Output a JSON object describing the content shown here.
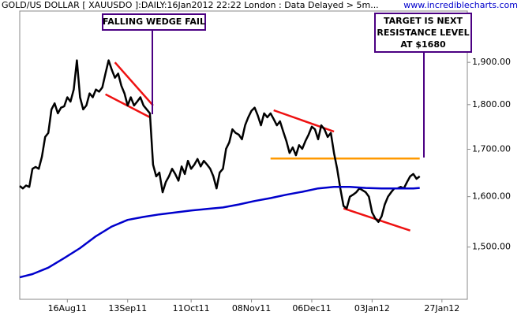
{
  "chart_data": {
    "type": "line",
    "title": "GOLD/US DOLLAR [ XAUUSDO ]:DAILY:16Jan2012 22:22 London : Data Delayed > 5m...",
    "source": "www.incrediblecharts.com",
    "log_scale": true,
    "xlim": [
      0,
      141
    ],
    "xticks": [
      {
        "value": 15,
        "label": "16Aug11"
      },
      {
        "value": 34,
        "label": "13Sep11"
      },
      {
        "value": 54,
        "label": "11Oct11"
      },
      {
        "value": 73,
        "label": "08Nov11"
      },
      {
        "value": 92,
        "label": "06Dec11"
      },
      {
        "value": 111,
        "label": "03Jan12"
      },
      {
        "value": 133,
        "label": "27Jan12"
      }
    ],
    "ylim": [
      1403,
      2029
    ],
    "yticks": [
      {
        "value": 1500,
        "label": "1,500.00"
      },
      {
        "value": 1600,
        "label": "1,600.00"
      },
      {
        "value": 1700,
        "label": "1,700.00"
      },
      {
        "value": 1800,
        "label": "1,800.00"
      },
      {
        "value": 1900,
        "label": "1,900.00"
      }
    ],
    "series": [
      {
        "color": "#000000",
        "x": [
          0,
          1,
          2,
          3,
          4,
          5,
          6,
          7,
          8,
          9,
          10,
          11,
          12,
          13,
          14,
          15,
          16,
          17,
          18,
          19,
          20,
          21,
          22,
          23,
          24,
          25,
          26,
          27,
          28,
          29,
          30,
          31,
          32,
          33,
          34,
          35,
          36,
          37,
          38,
          39,
          40,
          41,
          42,
          43,
          44,
          45,
          46,
          47,
          48,
          49,
          50,
          51,
          52,
          53,
          54,
          55,
          56,
          57,
          58,
          59,
          60,
          61,
          62,
          63,
          64,
          65,
          66,
          67,
          68,
          69,
          70,
          71,
          72,
          73,
          74,
          75,
          76,
          77,
          78,
          79,
          80,
          81,
          82,
          83,
          84,
          85,
          86,
          87,
          88,
          89,
          90,
          91,
          92,
          93,
          94,
          95,
          96,
          97,
          98,
          99,
          100,
          101,
          102,
          103,
          104,
          105,
          106,
          107,
          108,
          109,
          110,
          111,
          112,
          113,
          114,
          115,
          116,
          117,
          118,
          119,
          120,
          121,
          122,
          123,
          124,
          125,
          126
        ],
        "values": [
          1622,
          1617,
          1623,
          1620,
          1658,
          1662,
          1658,
          1684,
          1727,
          1736,
          1789,
          1803,
          1780,
          1793,
          1796,
          1817,
          1807,
          1835,
          1905,
          1817,
          1789,
          1798,
          1826,
          1817,
          1835,
          1830,
          1840,
          1873,
          1905,
          1882,
          1863,
          1873,
          1844,
          1826,
          1798,
          1817,
          1798,
          1807,
          1817,
          1798,
          1789,
          1780,
          1667,
          1642,
          1650,
          1609,
          1630,
          1642,
          1658,
          1647,
          1633,
          1663,
          1647,
          1675,
          1658,
          1667,
          1679,
          1663,
          1675,
          1667,
          1658,
          1642,
          1617,
          1650,
          1658,
          1701,
          1715,
          1744,
          1736,
          1732,
          1722,
          1753,
          1771,
          1786,
          1793,
          1775,
          1753,
          1780,
          1771,
          1780,
          1767,
          1753,
          1762,
          1739,
          1718,
          1692,
          1704,
          1687,
          1709,
          1701,
          1718,
          1732,
          1750,
          1744,
          1722,
          1753,
          1744,
          1727,
          1736,
          1692,
          1658,
          1617,
          1581,
          1576,
          1600,
          1604,
          1609,
          1617,
          1613,
          1609,
          1600,
          1568,
          1556,
          1549,
          1560,
          1584,
          1600,
          1609,
          1617,
          1617,
          1620,
          1617,
          1630,
          1642,
          1647,
          1637,
          1642
        ]
      },
      {
        "color": "#0000cc",
        "x": [
          0,
          4,
          9,
          14,
          19,
          24,
          29,
          34,
          39,
          44,
          49,
          54,
          59,
          64,
          69,
          74,
          79,
          84,
          89,
          94,
          99,
          104,
          109,
          114,
          119,
          124,
          126
        ],
        "values": [
          1443,
          1449,
          1461,
          1479,
          1498,
          1521,
          1540,
          1553,
          1559,
          1564,
          1568,
          1572,
          1575,
          1578,
          1584,
          1591,
          1597,
          1604,
          1610,
          1617,
          1620,
          1620,
          1618,
          1617,
          1617,
          1617,
          1618
        ]
      }
    ],
    "overlays": [
      {
        "color": "#ff9900",
        "x": [
          79,
          126
        ],
        "values": [
          1680,
          1680
        ]
      },
      {
        "color": "#ee1111",
        "x": [
          30,
          42
        ],
        "values": [
          1900,
          1798
        ]
      },
      {
        "color": "#ee1111",
        "x": [
          27,
          41
        ],
        "values": [
          1824,
          1771
        ]
      },
      {
        "color": "#ee1111",
        "x": [
          80,
          99
        ],
        "values": [
          1787,
          1739
        ]
      },
      {
        "color": "#ee1111",
        "x": [
          102,
          123
        ],
        "values": [
          1576,
          1532
        ]
      }
    ],
    "annotations": [
      "FALLING WEDGE FAIL",
      "TARGET IS NEXT",
      "RESISTANCE LEVEL",
      "AT $1680"
    ]
  }
}
